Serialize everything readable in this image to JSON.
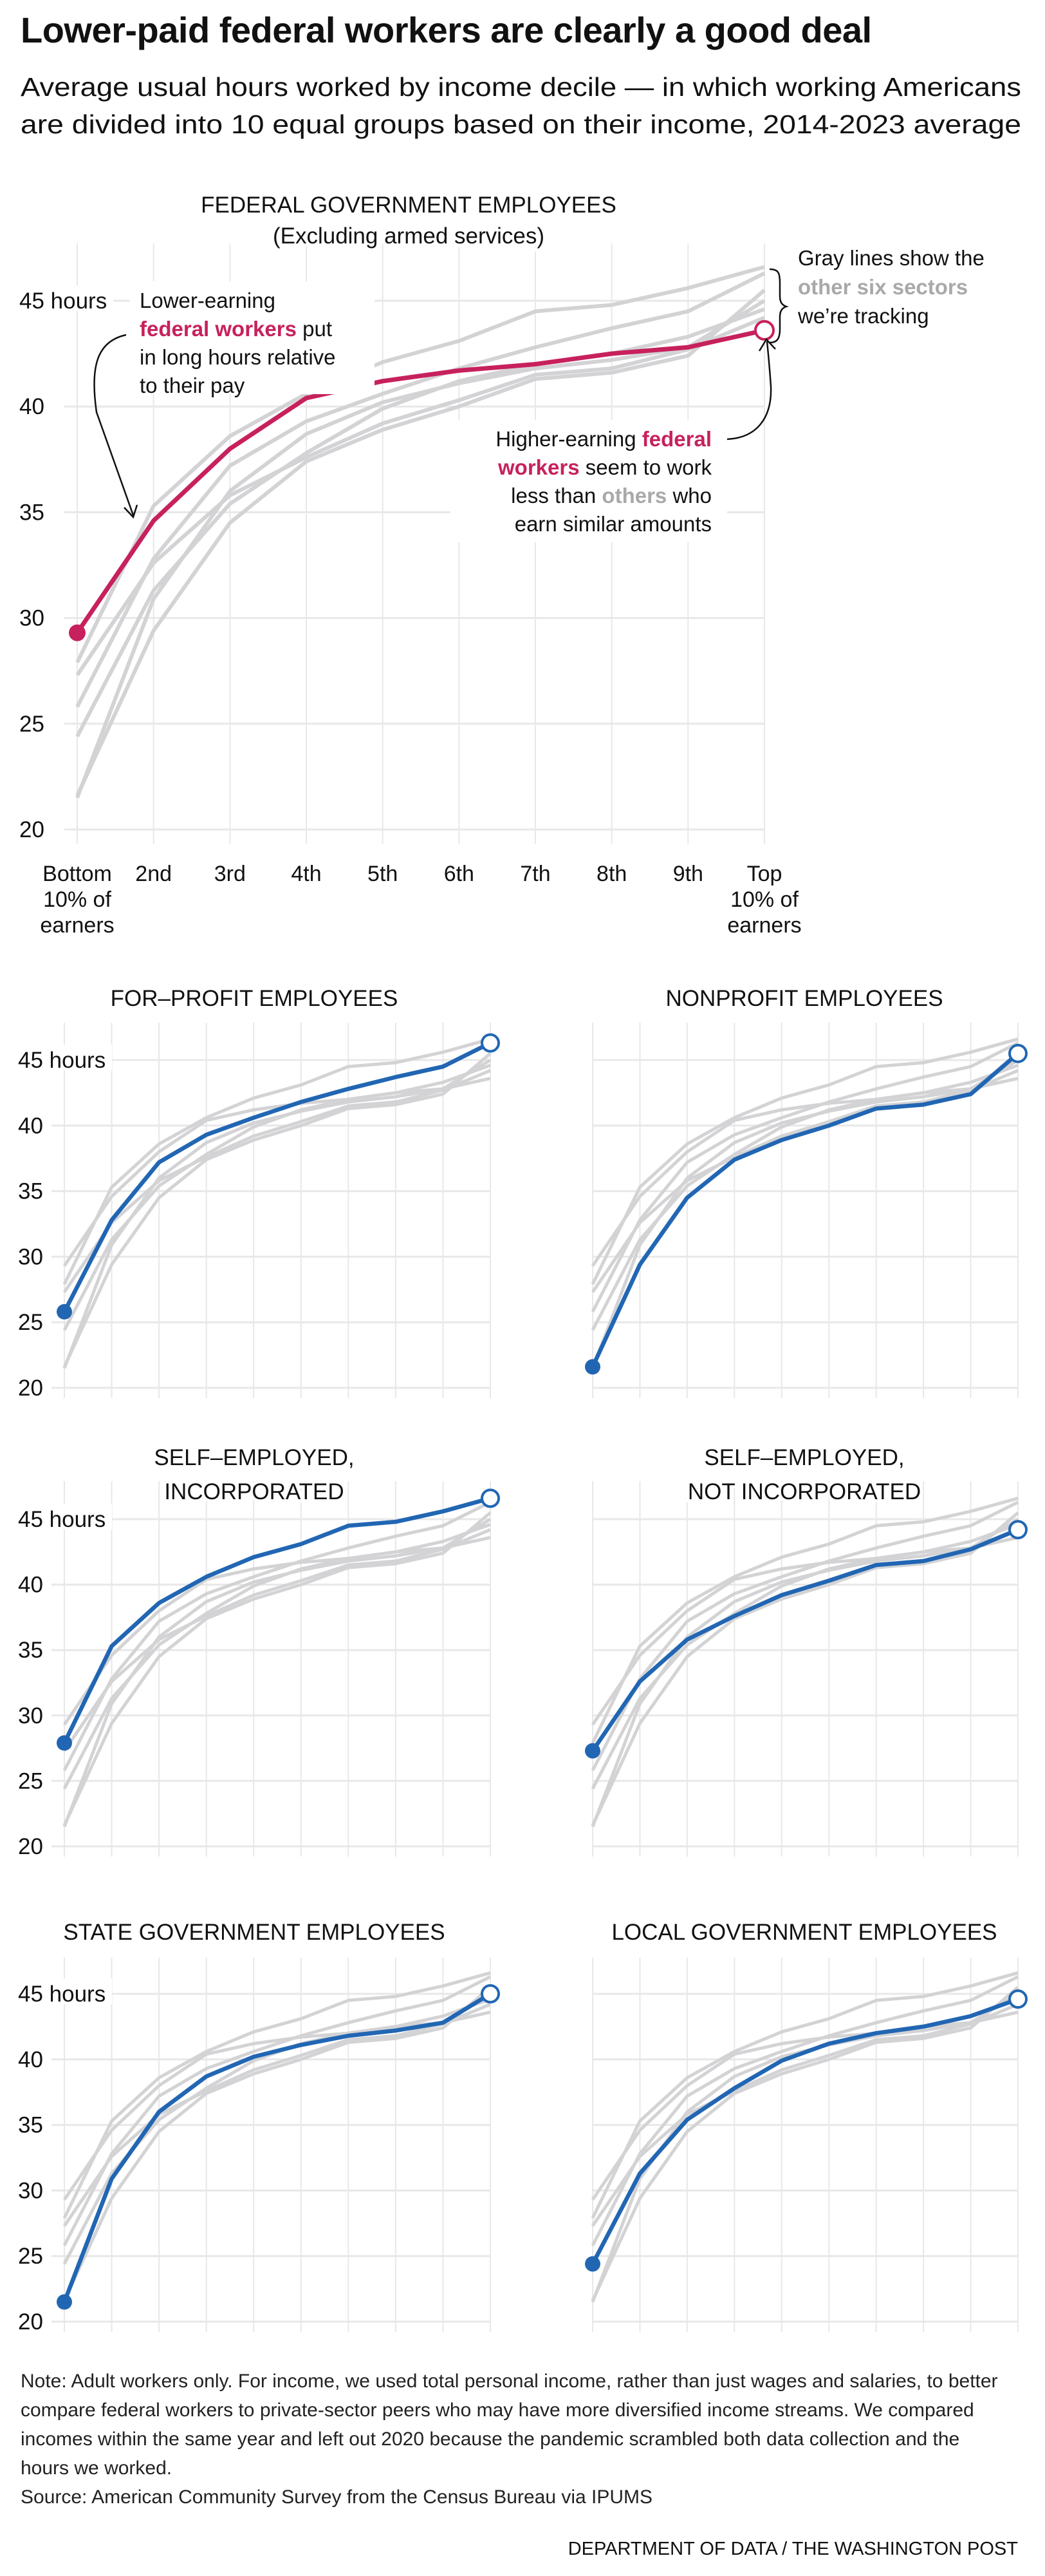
{
  "headline": "Lower-paid federal workers are clearly a good deal",
  "subtitle": [
    "Average usual hours worked by income decile — in which working Americans",
    "are divided into 10 equal groups based on their income, 2014-2023 average"
  ],
  "colors": {
    "federal": "#c7215d",
    "highlight": "#2166b3",
    "others": "#d3d3d5",
    "grid": "#e8e8e8",
    "annotation_gray": "#a9a9ab"
  },
  "annotations": {
    "lower": {
      "line1": "Lower-earning",
      "line2_highlight": "federal workers",
      "line2_rest": " put",
      "line3": "in long hours relative",
      "line4": "to their pay"
    },
    "higher": {
      "line1_plain": "Higher-earning ",
      "line1_highlight": "federal",
      "line2_highlight": "workers",
      "line2_rest": " seem to work",
      "line3_plain": "less than ",
      "line3_gray": "others",
      "line3_rest": " who",
      "line4": "earn similar amounts"
    },
    "gray_lines": {
      "line1": "Gray lines show the",
      "line2_gray": "other six sectors",
      "line3": "we’re tracking"
    }
  },
  "footer": {
    "note": "Note: Adult workers only. For income, we used total personal income, rather than just wages and salaries, to better compare federal workers to private-sector peers who may have more diversified income streams. We compared incomes within the same year and left out 2020 because the pandemic scrambled both data collection and the hours we worked.",
    "source": "Source: American Community Survey from the Census Bureau via IPUMS",
    "credit": "DEPARTMENT OF DATA / THE WASHINGTON POST"
  },
  "chart_data": [
    {
      "type": "line",
      "id": "federal",
      "title": [
        "FEDERAL GOVERNMENT EMPLOYEES",
        "(Excluding armed services)"
      ],
      "highlight_color": "#c7215d",
      "xlabel": "",
      "ylabel": "",
      "x_tick_labels": [
        [
          "Bottom",
          "10% of",
          "earners"
        ],
        [
          "2nd"
        ],
        [
          "3rd"
        ],
        [
          "4th"
        ],
        [
          "5th"
        ],
        [
          "6th"
        ],
        [
          "7th"
        ],
        [
          "8th"
        ],
        [
          "9th"
        ],
        [
          "Top",
          "10% of",
          "earners"
        ]
      ],
      "y_ticks": [
        20,
        25,
        30,
        35,
        40,
        45
      ],
      "y_tick_labels": [
        "20",
        "25",
        "30",
        "35",
        "40",
        "45 hours"
      ],
      "ylim": [
        20,
        46.5
      ],
      "grid": true,
      "highlight_series": "Federal government employees",
      "values": [
        29.3,
        34.6,
        38.0,
        40.4,
        41.2,
        41.7,
        42.0,
        42.5,
        42.8,
        43.6
      ]
    },
    {
      "type": "line",
      "id": "forprofit",
      "title": [
        "FOR–PROFIT EMPLOYEES"
      ],
      "highlight_color": "#2166b3",
      "y_ticks": [
        20,
        25,
        30,
        35,
        40,
        45
      ],
      "y_tick_labels": [
        "20",
        "25",
        "30",
        "35",
        "40",
        "45 hours"
      ],
      "ylim": [
        20,
        46.5
      ],
      "grid": true,
      "highlight_series": "For-profit employees",
      "values": [
        25.8,
        32.8,
        37.2,
        39.3,
        40.6,
        41.8,
        42.8,
        43.7,
        44.5,
        46.3
      ]
    },
    {
      "type": "line",
      "id": "nonprofit",
      "title": [
        "NONPROFIT EMPLOYEES"
      ],
      "highlight_color": "#2166b3",
      "y_ticks": [
        20,
        25,
        30,
        35,
        40,
        45
      ],
      "y_tick_labels": [],
      "ylim": [
        20,
        46.5
      ],
      "grid": true,
      "highlight_series": "Nonprofit employees",
      "values": [
        21.6,
        29.4,
        34.5,
        37.4,
        38.9,
        40.0,
        41.3,
        41.6,
        42.4,
        45.5
      ]
    },
    {
      "type": "line",
      "id": "selfinc",
      "title": [
        "SELF–EMPLOYED,",
        "INCORPORATED"
      ],
      "highlight_color": "#2166b3",
      "y_ticks": [
        20,
        25,
        30,
        35,
        40,
        45
      ],
      "y_tick_labels": [
        "20",
        "25",
        "30",
        "35",
        "40",
        "45 hours"
      ],
      "ylim": [
        20,
        46.5
      ],
      "grid": true,
      "highlight_series": "Self-employed, incorporated",
      "values": [
        27.9,
        35.3,
        38.6,
        40.6,
        42.1,
        43.1,
        44.5,
        44.8,
        45.6,
        46.6
      ]
    },
    {
      "type": "line",
      "id": "selfnotinc",
      "title": [
        "SELF–EMPLOYED,",
        "NOT INCORPORATED"
      ],
      "highlight_color": "#2166b3",
      "y_ticks": [
        20,
        25,
        30,
        35,
        40,
        45
      ],
      "y_tick_labels": [],
      "ylim": [
        20,
        46.5
      ],
      "grid": true,
      "highlight_series": "Self-employed, not incorporated",
      "values": [
        27.3,
        32.6,
        35.8,
        37.6,
        39.2,
        40.3,
        41.5,
        41.8,
        42.7,
        44.2
      ]
    },
    {
      "type": "line",
      "id": "state",
      "title": [
        "STATE GOVERNMENT EMPLOYEES"
      ],
      "highlight_color": "#2166b3",
      "y_ticks": [
        20,
        25,
        30,
        35,
        40,
        45
      ],
      "y_tick_labels": [
        "20",
        "25",
        "30",
        "35",
        "40",
        "45 hours"
      ],
      "ylim": [
        20,
        46.5
      ],
      "grid": true,
      "highlight_series": "State government employees",
      "values": [
        21.5,
        30.9,
        36.0,
        38.7,
        40.2,
        41.1,
        41.8,
        42.2,
        42.8,
        45.0
      ]
    },
    {
      "type": "line",
      "id": "local",
      "title": [
        "LOCAL GOVERNMENT EMPLOYEES"
      ],
      "highlight_color": "#2166b3",
      "y_ticks": [
        20,
        25,
        30,
        35,
        40,
        45
      ],
      "y_tick_labels": [],
      "ylim": [
        20,
        46.5
      ],
      "grid": true,
      "highlight_series": "Local government employees",
      "values": [
        24.4,
        31.3,
        35.4,
        37.8,
        39.9,
        41.2,
        42.0,
        42.5,
        43.3,
        44.6
      ]
    }
  ]
}
